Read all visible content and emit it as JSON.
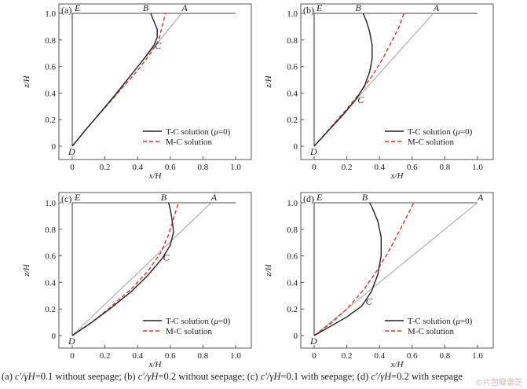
{
  "chart_data": [
    {
      "panel_label": "(a)",
      "type": "line",
      "xlabel": "x/H",
      "ylabel": "z/H",
      "xlim": [
        0,
        1.0
      ],
      "ylim": [
        0,
        1.0
      ],
      "x_ticks": [
        "0",
        "0.2",
        "0.4",
        "0.6",
        "0.8",
        "1.0"
      ],
      "y_ticks": [
        "0",
        "0.2",
        "0.4",
        "0.6",
        "0.8",
        "1.0"
      ],
      "point_labels": [
        {
          "label": "E",
          "x": 0,
          "y": 1.0
        },
        {
          "label": "B",
          "x": 0.48,
          "y": 1.0
        },
        {
          "label": "A",
          "x": 0.67,
          "y": 1.0
        },
        {
          "label": "C",
          "x": 0.52,
          "y": 0.8
        },
        {
          "label": "D",
          "x": 0,
          "y": 0
        }
      ],
      "legend": {
        "position": "bottom-right",
        "entries": [
          "T-C solution (μ=0)",
          "M-C solution"
        ]
      },
      "series": [
        {
          "name": "T-C solution (μ=0)",
          "color": "#222222",
          "dash": "solid",
          "points": [
            [
              0,
              0
            ],
            [
              0.08,
              0.12
            ],
            [
              0.17,
              0.25
            ],
            [
              0.26,
              0.38
            ],
            [
              0.35,
              0.52
            ],
            [
              0.44,
              0.66
            ],
            [
              0.5,
              0.76
            ],
            [
              0.52,
              0.82
            ],
            [
              0.52,
              0.88
            ],
            [
              0.5,
              0.94
            ],
            [
              0.48,
              1.0
            ]
          ]
        },
        {
          "name": "M-C solution",
          "color": "#d9332b",
          "dash": "dashed",
          "points": [
            [
              0,
              0
            ],
            [
              0.1,
              0.15
            ],
            [
              0.2,
              0.29
            ],
            [
              0.3,
              0.43
            ],
            [
              0.4,
              0.57
            ],
            [
              0.48,
              0.7
            ],
            [
              0.53,
              0.8
            ],
            [
              0.55,
              0.9
            ],
            [
              0.57,
              1.0
            ]
          ]
        },
        {
          "color": "#aaaaaa",
          "dash": "solid",
          "points": [
            [
              0,
              0
            ],
            [
              0.67,
              1.0
            ]
          ]
        },
        {
          "color": "#444444",
          "dash": "solid",
          "points": [
            [
              0,
              0
            ],
            [
              0,
              1.0
            ],
            [
              1.0,
              1.0
            ]
          ]
        }
      ]
    },
    {
      "panel_label": "(b)",
      "type": "line",
      "xlabel": "x/H",
      "ylabel": "z/H",
      "xlim": [
        0,
        1.0
      ],
      "ylim": [
        0,
        1.0
      ],
      "x_ticks": [
        "0",
        "0.2",
        "0.4",
        "0.6",
        "0.8",
        "1.0"
      ],
      "y_ticks": [
        "0",
        "0.2",
        "0.4",
        "0.6",
        "0.8",
        "1.0"
      ],
      "point_labels": [
        {
          "label": "E",
          "x": 0,
          "y": 1.0
        },
        {
          "label": "B",
          "x": 0.3,
          "y": 1.0
        },
        {
          "label": "A",
          "x": 0.73,
          "y": 1.0
        },
        {
          "label": "C",
          "x": 0.28,
          "y": 0.39
        },
        {
          "label": "D",
          "x": 0,
          "y": 0
        }
      ],
      "legend": {
        "position": "bottom-right",
        "entries": [
          "T-C solution (μ=0)",
          "M-C solution"
        ]
      },
      "series": [
        {
          "name": "T-C solution (μ=0)",
          "color": "#222222",
          "dash": "solid",
          "points": [
            [
              0,
              0
            ],
            [
              0.09,
              0.12
            ],
            [
              0.18,
              0.24
            ],
            [
              0.26,
              0.36
            ],
            [
              0.31,
              0.46
            ],
            [
              0.34,
              0.56
            ],
            [
              0.355,
              0.66
            ],
            [
              0.355,
              0.76
            ],
            [
              0.34,
              0.86
            ],
            [
              0.32,
              0.94
            ],
            [
              0.3,
              1.0
            ]
          ]
        },
        {
          "name": "M-C solution",
          "color": "#d9332b",
          "dash": "dashed",
          "points": [
            [
              0,
              0
            ],
            [
              0.1,
              0.14
            ],
            [
              0.2,
              0.28
            ],
            [
              0.28,
              0.4
            ],
            [
              0.35,
              0.52
            ],
            [
              0.42,
              0.66
            ],
            [
              0.48,
              0.8
            ],
            [
              0.52,
              0.9
            ],
            [
              0.55,
              1.0
            ]
          ]
        },
        {
          "color": "#aaaaaa",
          "dash": "solid",
          "points": [
            [
              0,
              0
            ],
            [
              0.73,
              1.0
            ]
          ]
        },
        {
          "color": "#444444",
          "dash": "solid",
          "points": [
            [
              0,
              0
            ],
            [
              0,
              1.0
            ],
            [
              1.0,
              1.0
            ]
          ]
        }
      ]
    },
    {
      "panel_label": "(c)",
      "type": "line",
      "xlabel": "x/H",
      "ylabel": "z/H",
      "xlim": [
        0,
        1.0
      ],
      "ylim": [
        0,
        1.0
      ],
      "x_ticks": [
        "0",
        "0.2",
        "0.4",
        "0.6",
        "0.8",
        "1.0"
      ],
      "y_ticks": [
        "0",
        "0.2",
        "0.4",
        "0.6",
        "0.8",
        "1.0"
      ],
      "point_labels": [
        {
          "label": "E",
          "x": 0,
          "y": 1.0
        },
        {
          "label": "B",
          "x": 0.59,
          "y": 1.0
        },
        {
          "label": "A",
          "x": 0.85,
          "y": 1.0
        },
        {
          "label": "C",
          "x": 0.57,
          "y": 0.63
        },
        {
          "label": "D",
          "x": 0,
          "y": 0
        }
      ],
      "legend": {
        "position": "bottom-right",
        "entries": [
          "T-C solution (μ=0)",
          "M-C solution"
        ]
      },
      "series": [
        {
          "name": "T-C solution (μ=0)",
          "color": "#222222",
          "dash": "solid",
          "points": [
            [
              0,
              0
            ],
            [
              0.12,
              0.1
            ],
            [
              0.24,
              0.21
            ],
            [
              0.36,
              0.33
            ],
            [
              0.46,
              0.45
            ],
            [
              0.55,
              0.58
            ],
            [
              0.6,
              0.68
            ],
            [
              0.62,
              0.78
            ],
            [
              0.61,
              0.88
            ],
            [
              0.6,
              0.95
            ],
            [
              0.59,
              1.0
            ]
          ]
        },
        {
          "name": "M-C solution",
          "color": "#d9332b",
          "dash": "dashed",
          "points": [
            [
              0,
              0
            ],
            [
              0.12,
              0.1
            ],
            [
              0.24,
              0.22
            ],
            [
              0.36,
              0.35
            ],
            [
              0.46,
              0.48
            ],
            [
              0.54,
              0.62
            ],
            [
              0.59,
              0.76
            ],
            [
              0.62,
              0.88
            ],
            [
              0.65,
              1.0
            ]
          ]
        },
        {
          "color": "#aaaaaa",
          "dash": "solid",
          "points": [
            [
              0,
              0
            ],
            [
              0.85,
              1.0
            ]
          ]
        },
        {
          "color": "#444444",
          "dash": "solid",
          "points": [
            [
              0,
              0
            ],
            [
              0,
              1.0
            ],
            [
              1.0,
              1.0
            ]
          ]
        }
      ]
    },
    {
      "panel_label": "(d)",
      "type": "line",
      "xlabel": "x/H",
      "ylabel": "z/H",
      "xlim": [
        0,
        1.0
      ],
      "ylim": [
        0,
        1.0
      ],
      "x_ticks": [
        "0",
        "0.2",
        "0.4",
        "0.6",
        "0.8",
        "1.0"
      ],
      "y_ticks": [
        "0",
        "0.2",
        "0.4",
        "0.6",
        "0.8",
        "1.0"
      ],
      "point_labels": [
        {
          "label": "E",
          "x": 0,
          "y": 1.0
        },
        {
          "label": "B",
          "x": 0.34,
          "y": 1.0
        },
        {
          "label": "A",
          "x": 1.0,
          "y": 1.0
        },
        {
          "label": "C",
          "x": 0.33,
          "y": 0.3
        },
        {
          "label": "D",
          "x": 0,
          "y": 0
        }
      ],
      "legend": {
        "position": "bottom-right",
        "entries": [
          "T-C solution (μ=0)",
          "M-C solution"
        ]
      },
      "series": [
        {
          "name": "T-C solution (μ=0)",
          "color": "#222222",
          "dash": "solid",
          "points": [
            [
              0,
              0
            ],
            [
              0.1,
              0.07
            ],
            [
              0.2,
              0.14
            ],
            [
              0.29,
              0.22
            ],
            [
              0.35,
              0.33
            ],
            [
              0.39,
              0.46
            ],
            [
              0.41,
              0.6
            ],
            [
              0.41,
              0.74
            ],
            [
              0.39,
              0.86
            ],
            [
              0.36,
              0.95
            ],
            [
              0.34,
              1.0
            ]
          ]
        },
        {
          "name": "M-C solution",
          "color": "#d9332b",
          "dash": "dashed",
          "points": [
            [
              0,
              0
            ],
            [
              0.1,
              0.09
            ],
            [
              0.2,
              0.2
            ],
            [
              0.3,
              0.34
            ],
            [
              0.38,
              0.48
            ],
            [
              0.45,
              0.62
            ],
            [
              0.51,
              0.76
            ],
            [
              0.56,
              0.88
            ],
            [
              0.61,
              1.0
            ]
          ]
        },
        {
          "color": "#aaaaaa",
          "dash": "solid",
          "points": [
            [
              0,
              0
            ],
            [
              1.0,
              1.0
            ]
          ]
        },
        {
          "color": "#444444",
          "dash": "solid",
          "points": [
            [
              0,
              0
            ],
            [
              0,
              1.0
            ],
            [
              1.0,
              1.0
            ]
          ]
        }
      ]
    }
  ],
  "caption": {
    "a_tag": "(a)",
    "a_var": "c′/γH",
    "a_rest": "=0.1  without  seepage;",
    "b_tag": "(b)",
    "b_var": "c′/γH",
    "b_rest": "=0.2 without seepage;",
    "c_tag": "(c)",
    "c_var": "c′/γH",
    "c_rest": "=0.1 with seepage;",
    "d_tag": "(d)",
    "d_var": "c′/γH",
    "d_rest": "=0.2 with seepage"
  },
  "watermark": "©片芭瓣雷芝",
  "colors": {
    "tc": "#222222",
    "mc": "#d9332b",
    "reference": "#aaaaaa",
    "frame": "#444444"
  }
}
